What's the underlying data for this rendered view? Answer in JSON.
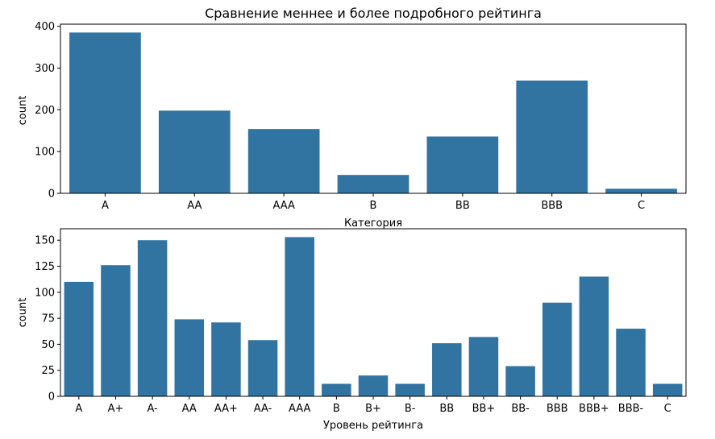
{
  "figure": {
    "title": "Сравнение меннее и более подробного рейтинга"
  },
  "chart_data": [
    {
      "type": "bar",
      "title": "Сравнение меннее и более подробного рейтинга",
      "categories": [
        "A",
        "AA",
        "AAA",
        "B",
        "BB",
        "BBB",
        "C"
      ],
      "values": [
        385,
        198,
        154,
        44,
        136,
        270,
        11
      ],
      "xlabel": "Категория",
      "ylabel": "count",
      "ylim": [
        0,
        405
      ],
      "yticks": [
        0,
        100,
        200,
        300,
        400
      ],
      "bar_color": "#3274a1",
      "grid": false,
      "legend": "none"
    },
    {
      "type": "bar",
      "title": "",
      "categories": [
        "A",
        "A+",
        "A-",
        "AA",
        "AA+",
        "AA-",
        "AAA",
        "B",
        "B+",
        "B-",
        "BB",
        "BB+",
        "BB-",
        "BBB",
        "BBB+",
        "BBB-",
        "C"
      ],
      "values": [
        110,
        126,
        150,
        74,
        71,
        54,
        153,
        12,
        20,
        12,
        51,
        57,
        29,
        90,
        115,
        65,
        12
      ],
      "xlabel": "Уровень рейтинга",
      "ylabel": "count",
      "ylim": [
        0,
        161
      ],
      "yticks": [
        0,
        25,
        50,
        75,
        100,
        125,
        150
      ],
      "bar_color": "#3274a1",
      "grid": false,
      "legend": "none"
    }
  ]
}
